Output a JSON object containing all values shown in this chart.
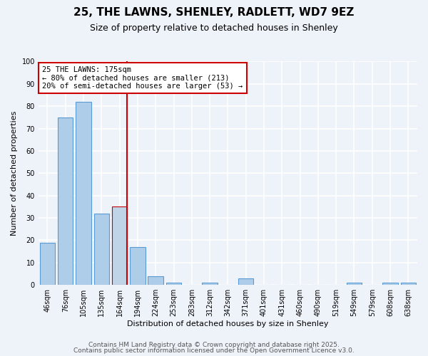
{
  "title": "25, THE LAWNS, SHENLEY, RADLETT, WD7 9EZ",
  "subtitle": "Size of property relative to detached houses in Shenley",
  "xlabel": "Distribution of detached houses by size in Shenley",
  "ylabel": "Number of detached properties",
  "categories": [
    "46sqm",
    "76sqm",
    "105sqm",
    "135sqm",
    "164sqm",
    "194sqm",
    "224sqm",
    "253sqm",
    "283sqm",
    "312sqm",
    "342sqm",
    "371sqm",
    "401sqm",
    "431sqm",
    "460sqm",
    "490sqm",
    "519sqm",
    "549sqm",
    "579sqm",
    "608sqm",
    "638sqm"
  ],
  "values": [
    19,
    75,
    82,
    32,
    35,
    17,
    4,
    1,
    0,
    1,
    0,
    3,
    0,
    0,
    0,
    0,
    0,
    1,
    0,
    1,
    1
  ],
  "bar_color": "#aecde8",
  "bar_edge_color": "#5b9bd5",
  "highlight_bar_index": 4,
  "highlight_bar_color": "#c0d4e8",
  "highlight_bar_edge_color": "#cc0000",
  "vline_color": "#cc0000",
  "annotation_text": "25 THE LAWNS: 175sqm\n← 80% of detached houses are smaller (213)\n20% of semi-detached houses are larger (53) →",
  "annotation_box_color": "white",
  "annotation_box_edge_color": "#cc0000",
  "ylim": [
    0,
    100
  ],
  "yticks": [
    0,
    10,
    20,
    30,
    40,
    50,
    60,
    70,
    80,
    90,
    100
  ],
  "footer1": "Contains HM Land Registry data © Crown copyright and database right 2025.",
  "footer2": "Contains public sector information licensed under the Open Government Licence v3.0.",
  "background_color": "#eef2f9",
  "grid_color": "white",
  "title_fontsize": 11,
  "subtitle_fontsize": 9,
  "axis_label_fontsize": 8,
  "tick_fontsize": 7,
  "annotation_fontsize": 7.5,
  "footer_fontsize": 6.5
}
